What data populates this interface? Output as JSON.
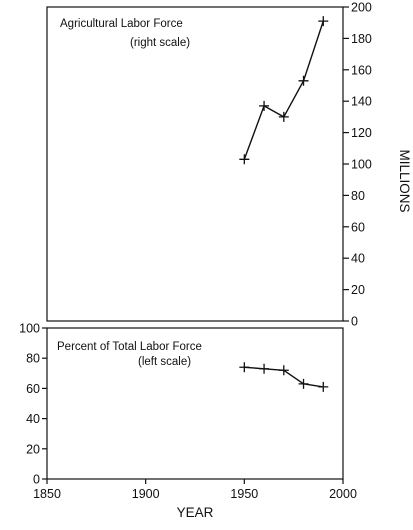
{
  "chart_data": [
    {
      "type": "line",
      "title": "Agricultural Labor Force",
      "subtitle": "(right scale)",
      "ylabel": "MILLIONS",
      "y_axis_side": "right",
      "xlim": [
        1850,
        2000
      ],
      "ylim": [
        0,
        200
      ],
      "yticks": [
        "0",
        "20",
        "40",
        "60",
        "80",
        "100",
        "120",
        "140",
        "160",
        "180",
        "200"
      ],
      "grid": false,
      "series": [
        {
          "x": [
            1950,
            1960,
            1970,
            1980,
            1990
          ],
          "values": [
            103,
            137,
            130,
            153,
            191
          ]
        }
      ]
    },
    {
      "type": "line",
      "title": "Percent of Total Labor Force",
      "subtitle": "(left scale)",
      "xlabel": "YEAR",
      "y_axis_side": "left",
      "xlim": [
        1850,
        2000
      ],
      "ylim": [
        0,
        100
      ],
      "xticks": [
        "1850",
        "1900",
        "1950",
        "2000"
      ],
      "yticks": [
        "0",
        "20",
        "40",
        "60",
        "80",
        "100"
      ],
      "grid": false,
      "series": [
        {
          "x": [
            1950,
            1960,
            1970,
            1980,
            1990
          ],
          "values": [
            74,
            73,
            72,
            63,
            61
          ]
        }
      ]
    }
  ]
}
